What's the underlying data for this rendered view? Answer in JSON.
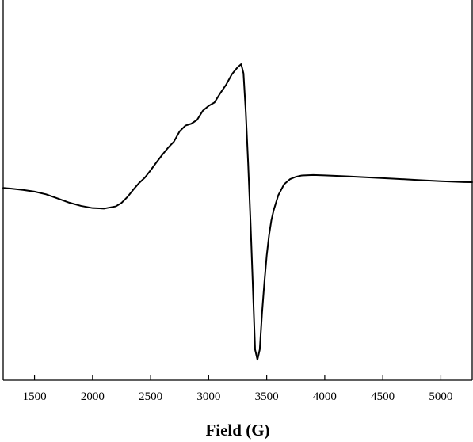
{
  "chart_data": {
    "type": "line",
    "title": "",
    "xlabel": "Field (G)",
    "ylabel": "",
    "xlim": [
      1230,
      5270
    ],
    "ylim": [
      -1.0,
      1.0
    ],
    "x_ticks": [
      1500,
      2000,
      2500,
      3000,
      3500,
      4000,
      4500,
      5000
    ],
    "x_tick_labels": [
      "1500",
      "2000",
      "2500",
      "3000",
      "3500",
      "4000",
      "4500",
      "5000"
    ],
    "y_ticks_visible": false,
    "grid": false,
    "legend": "none",
    "series": [
      {
        "x": [
          1230,
          1300,
          1400,
          1500,
          1600,
          1700,
          1800,
          1900,
          2000,
          2100,
          2200,
          2250,
          2300,
          2350,
          2400,
          2450,
          2500,
          2550,
          2600,
          2650,
          2700,
          2750,
          2800,
          2850,
          2900,
          2950,
          3000,
          3050,
          3100,
          3150,
          3200,
          3250,
          3280,
          3300,
          3320,
          3340,
          3360,
          3380,
          3400,
          3420,
          3440,
          3460,
          3480,
          3500,
          3520,
          3540,
          3560,
          3600,
          3650,
          3700,
          3750,
          3800,
          3900,
          4000,
          4200,
          4400,
          4600,
          4800,
          5000,
          5200,
          5270
        ],
        "y": [
          0.013,
          0.009,
          0.001,
          -0.009,
          -0.025,
          -0.05,
          -0.075,
          -0.094,
          -0.107,
          -0.11,
          -0.097,
          -0.076,
          -0.041,
          0.002,
          0.042,
          0.074,
          0.118,
          0.165,
          0.21,
          0.252,
          0.288,
          0.35,
          0.384,
          0.395,
          0.418,
          0.473,
          0.502,
          0.522,
          0.577,
          0.627,
          0.69,
          0.732,
          0.75,
          0.695,
          0.46,
          0.16,
          -0.18,
          -0.56,
          -0.95,
          -1.01,
          -0.95,
          -0.73,
          -0.55,
          -0.39,
          -0.27,
          -0.18,
          -0.12,
          -0.03,
          0.035,
          0.065,
          0.079,
          0.087,
          0.09,
          0.088,
          0.082,
          0.075,
          0.068,
          0.06,
          0.053,
          0.048,
          0.047
        ]
      }
    ]
  }
}
